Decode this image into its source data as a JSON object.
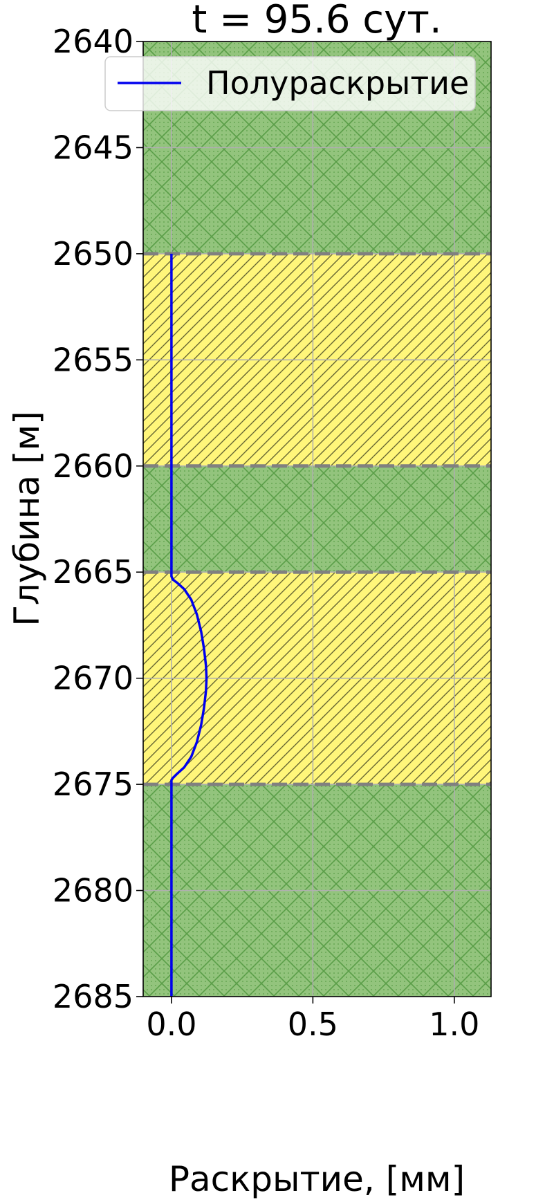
{
  "chart_data": {
    "type": "line",
    "title": "t = 95.6 сут.",
    "xlabel": "Раскрытие, [мм]",
    "ylabel": "Глубина [м]",
    "xlim": [
      -0.1,
      1.13
    ],
    "ylim": [
      2685,
      2640
    ],
    "y_inverted": true,
    "xticks": [
      0.0,
      0.5,
      1.0
    ],
    "xtick_labels": [
      "0.0",
      "0.5",
      "1.0"
    ],
    "yticks": [
      2640,
      2645,
      2650,
      2655,
      2660,
      2665,
      2670,
      2675,
      2680,
      2685
    ],
    "ytick_labels": [
      "2640",
      "2645",
      "2650",
      "2655",
      "2660",
      "2665",
      "2670",
      "2675",
      "2680",
      "2685"
    ],
    "grid": true,
    "legend": {
      "location": "top-right"
    },
    "layers": [
      {
        "top": 2640,
        "bottom": 2650,
        "kind": "green-crosshatch"
      },
      {
        "top": 2650,
        "bottom": 2660,
        "kind": "yellow-diagonal"
      },
      {
        "top": 2660,
        "bottom": 2665,
        "kind": "green-crosshatch"
      },
      {
        "top": 2665,
        "bottom": 2675,
        "kind": "yellow-diagonal"
      },
      {
        "top": 2675,
        "bottom": 2685,
        "kind": "green-crosshatch"
      }
    ],
    "boundaries": [
      2650,
      2660,
      2665,
      2675
    ],
    "colors": {
      "line": "#0000ee",
      "green_fill": "#93c47d",
      "green_hatch": "#5a9e48",
      "yellow_fill": "#fff67a",
      "yellow_hatch": "#666633",
      "boundary": "#808080",
      "grid": "#b0b0b0"
    },
    "series": [
      {
        "name": "Полураскрытие",
        "x": [
          0.0,
          0.0,
          0.0,
          0.0,
          0.0,
          0.0,
          0.005,
          0.02,
          0.045,
          0.07,
          0.09,
          0.105,
          0.115,
          0.122,
          0.124,
          0.122,
          0.115,
          0.105,
          0.09,
          0.07,
          0.045,
          0.02,
          0.005,
          0.0,
          0.0,
          0.0
        ],
        "y": [
          2650,
          2655,
          2660,
          2663,
          2664.8,
          2665.2,
          2665.35,
          2665.5,
          2665.8,
          2666.3,
          2667.0,
          2667.8,
          2668.6,
          2669.4,
          2670.0,
          2670.6,
          2671.4,
          2672.2,
          2673.0,
          2673.7,
          2674.2,
          2674.5,
          2674.7,
          2674.8,
          2680,
          2685
        ]
      }
    ]
  }
}
